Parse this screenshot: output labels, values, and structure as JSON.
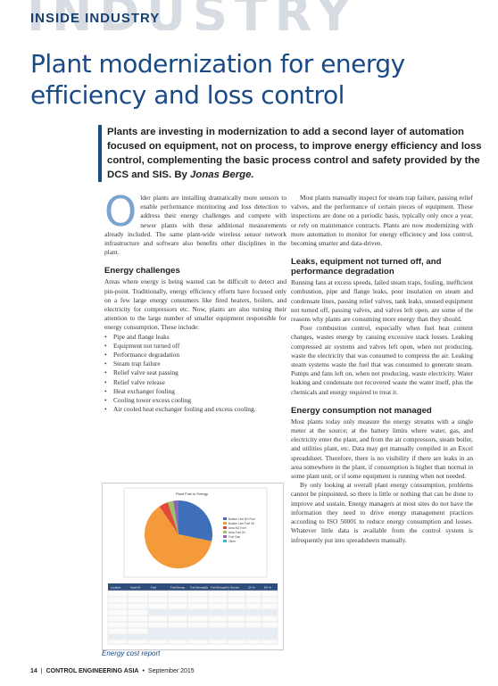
{
  "banner": {
    "big_text": "INDUSTRY",
    "small_text": "INSIDE INDUSTRY"
  },
  "headline": "Plant modernization for energy efficiency and loss control",
  "deck": {
    "text": "Plants are investing in modernization to add a second layer of automation focused on equipment, not on process, to improve energy efficiency and loss control, complementing the basic process control and safety provided by the DCS and SIS. By ",
    "byline": "Jonas Berge."
  },
  "col1": {
    "dropcap": "O",
    "intro": "lder plants are installing dramatically more sensors to enable performance monitoring and loss detection to address their energy challenges and compete with newer plants with these additional measurements already included. The same plant-wide wireless sensor network infrastructure and software also benefits other disciplines in the plant.",
    "h_energy": "Energy challenges",
    "energy_text": "Areas where energy is being wasted can be difficult to detect and pin-point. Traditionally, energy efficiency efforts have focused only on a few large energy consumers like fired heaters, boilers, and electricity for compressors etc. Now, plants are also turning their attention to the large number of smaller equipment responsible for energy consumption. These include:",
    "bullets": [
      "Pipe and flange leaks",
      "Equipment not turned off",
      "Performance degradation",
      "Steam trap failure",
      "Relief valve seat passing",
      "Relief valve release",
      "Heat exchanger fouling",
      "Cooling tower excess cooling",
      "Air cooled heat exchanger fouling and excess cooling."
    ]
  },
  "col2": {
    "p1": "Most plants manually inspect for steam trap failure, passing relief valves, and the performance of certain pieces of equipment. These inspections are done on a periodic basis, typically only once a year, or rely on maintenance contracts. Plants are now modernizing with more automation to monitor for energy efficiency and loss control, becoming smarter and data-driven.",
    "h_leaks": "Leaks, equipment not turned off, and performance degradation",
    "leaks_p1": "Running fans at excess speeds, failed steam traps, fouling, inefficient combustion, pipe and flange leaks, poor insulation on steam and condensate lines, passing relief valves, tank leaks, unused equipment not turned off, passing valves, and valves left open, are some of the reasons why plants are consuming more energy than they should.",
    "leaks_p2": "Poor combustion control, especially when fuel heat content changes, wastes energy by causing excessive stack losses. Leaking compressed air systems and valves left open, when not producing, waste the electricity that was consumed to compress the air. Leaking steam systems waste the fuel that was consumed to generate steam. Pumps and fans left on, when not producing, waste electricity. Water leaking and condensate not recovered waste the water itself, plus the chemicals and energy required to treat it.",
    "h_unmanaged": "Energy consumption not managed",
    "unmanaged_p1": "Most plants today only measure the energy streams with a single meter at the source; at the battery limits where water, gas, and electricity enter the plant, and from the air compressors, steam boiler, and utilities plant, etc. Data may get manually compiled in an Excel spreadsheet. Therefore, there is no visibility if there are leaks in an area somewhere in the plant, if consumption is higher than normal in some plant unit, or if some equipment is running when not needed.",
    "unmanaged_p2": "By only looking at overall plant energy consumption, problems cannot be pinpointed, so there is little or nothing that can be done to improve and sustain. Energy managers at most sites do not have the information they need to drive energy management practices according to ISO 50001 to reduce energy consumption and losses. Whatever little data is available from the control system is infrequently put into spreadsheets manually."
  },
  "figure": {
    "chart_title": "Plant Fuel in Energy",
    "legend": [
      "Bottom Line NG Fuel",
      "Bottom Line Fuel Oil",
      "Area NG Fuel",
      "Area Fuel Oil",
      "Fuel Gas",
      "Other"
    ],
    "table_headers": [
      "Location",
      "Asset ID",
      "Fuel",
      "Fuel Energy",
      "Fuel Energy($)",
      "Fuel Energy(%)",
      "Std dev",
      "CV %",
      "Eff. %"
    ],
    "caption": "Energy cost report"
  },
  "colors": {
    "pie": [
      "#3f6fb8",
      "#f59a3a",
      "#e24b3a",
      "#9cc46a",
      "#8e66b8",
      "#3bb7c9"
    ],
    "accent": "#1a4a86",
    "table_header": "#2e4d7a"
  },
  "footer": {
    "page": "14",
    "publication": "CONTROL ENGINEERING ASIA",
    "date": "September 2015"
  }
}
